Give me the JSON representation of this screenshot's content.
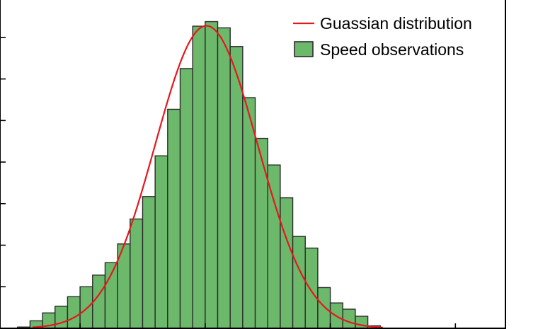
{
  "chart_data": {
    "type": "bar",
    "overlay": "line",
    "bar_color": "#6cb96b",
    "bar_edge_color": "#2b2b2b",
    "curve_color": "#e8161e",
    "grid": false,
    "legend_position": "top-right",
    "legend": [
      {
        "label": "Guassian distribution",
        "kind": "line"
      },
      {
        "label": "Speed observations",
        "kind": "patch"
      }
    ],
    "ylim": [
      0,
      7.9
    ],
    "histogram": {
      "bin_left_edges": [
        0.0,
        0.5,
        1.0,
        1.5,
        2.0,
        2.5,
        3.0,
        3.5,
        4.0,
        4.5,
        5.0,
        5.5,
        6.0,
        6.5,
        7.0,
        7.5,
        8.0,
        8.5,
        9.0,
        9.5,
        10.0,
        10.5,
        11.0,
        11.5,
        12.0,
        12.5,
        13.0,
        13.5,
        14.0
      ],
      "bin_width": 0.5,
      "values": [
        0.03,
        0.18,
        0.37,
        0.53,
        0.76,
        1.0,
        1.28,
        1.58,
        2.03,
        2.63,
        3.17,
        4.15,
        5.27,
        6.25,
        7.27,
        7.38,
        7.23,
        6.78,
        5.55,
        4.57,
        3.93,
        3.14,
        2.21,
        1.93,
        0.98,
        0.61,
        0.46,
        0.29,
        0.06
      ]
    },
    "gaussian": {
      "mean": 7.55,
      "std": 2.05,
      "peak": 7.28,
      "x_range": [
        0.6,
        14.6
      ]
    },
    "xlim": [
      -0.7,
      19.5
    ]
  }
}
